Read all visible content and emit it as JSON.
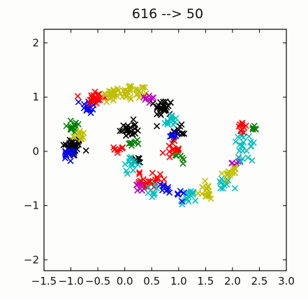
{
  "chart_data": {
    "type": "scatter",
    "title": "616 --> 50",
    "xlabel": "",
    "ylabel": "",
    "xlim": [
      -1.5,
      3.0
    ],
    "ylim": [
      -2.2,
      2.25
    ],
    "x_ticks": [
      -1.5,
      -1.0,
      -0.5,
      0.0,
      0.5,
      1.0,
      1.5,
      2.0,
      2.5,
      3.0
    ],
    "x_tick_labels": [
      "−1.5",
      "−1.0",
      "−0.5",
      "0.0",
      "0.5",
      "1.0",
      "1.5",
      "2.0",
      "2.5",
      "3.0"
    ],
    "y_ticks": [
      -2,
      -1,
      0,
      1,
      2
    ],
    "y_tick_labels": [
      "−2",
      "−1",
      "0",
      "1",
      "2"
    ],
    "marker": "x",
    "grid": false,
    "clusters": [
      {
        "color": "#000000",
        "center": [
          -0.97,
          0.08
        ],
        "n": 40,
        "spread": 0.09
      },
      {
        "color": "#0000ff",
        "center": [
          -1.02,
          -0.08
        ],
        "n": 14,
        "spread": 0.06
      },
      {
        "color": "#008000",
        "center": [
          -0.95,
          0.47
        ],
        "n": 14,
        "spread": 0.07
      },
      {
        "color": "#bfbf00",
        "center": [
          -0.85,
          0.3
        ],
        "n": 10,
        "spread": 0.06
      },
      {
        "color": "#0000ff",
        "center": [
          -0.68,
          0.83
        ],
        "n": 16,
        "spread": 0.07
      },
      {
        "color": "#ff0000",
        "center": [
          -0.55,
          0.98
        ],
        "n": 22,
        "spread": 0.08
      },
      {
        "color": "#bfbf00",
        "center": [
          -0.25,
          1.05
        ],
        "n": 20,
        "spread": 0.08
      },
      {
        "color": "#bfbf00",
        "center": [
          0.05,
          1.1
        ],
        "n": 18,
        "spread": 0.08
      },
      {
        "color": "#bfbf00",
        "center": [
          0.3,
          1.08
        ],
        "n": 12,
        "spread": 0.07
      },
      {
        "color": "#bf00bf",
        "center": [
          0.45,
          0.98
        ],
        "n": 8,
        "spread": 0.06
      },
      {
        "color": "#000000",
        "center": [
          0.72,
          0.8
        ],
        "n": 26,
        "spread": 0.08
      },
      {
        "color": "#00bfbf",
        "center": [
          0.85,
          0.55
        ],
        "n": 12,
        "spread": 0.07
      },
      {
        "color": "#000000",
        "center": [
          1.0,
          0.35
        ],
        "n": 12,
        "spread": 0.06
      },
      {
        "color": "#0000ff",
        "center": [
          0.9,
          0.3
        ],
        "n": 6,
        "spread": 0.05
      },
      {
        "color": "#ff0000",
        "center": [
          0.88,
          0.03
        ],
        "n": 14,
        "spread": 0.07
      },
      {
        "color": "#008000",
        "center": [
          1.05,
          -0.13
        ],
        "n": 6,
        "spread": 0.05
      },
      {
        "color": "#000000",
        "center": [
          0.05,
          0.4
        ],
        "n": 22,
        "spread": 0.08
      },
      {
        "color": "#008000",
        "center": [
          0.2,
          0.15
        ],
        "n": 8,
        "spread": 0.06
      },
      {
        "color": "#ff0000",
        "center": [
          -0.1,
          0.05
        ],
        "n": 8,
        "spread": 0.05
      },
      {
        "color": "#000000",
        "center": [
          0.25,
          -0.15
        ],
        "n": 8,
        "spread": 0.05
      },
      {
        "color": "#00bfbf",
        "center": [
          0.1,
          -0.25
        ],
        "n": 14,
        "spread": 0.07
      },
      {
        "color": "#ff0000",
        "center": [
          0.35,
          -0.55
        ],
        "n": 18,
        "spread": 0.09
      },
      {
        "color": "#ff0000",
        "center": [
          0.62,
          -0.52
        ],
        "n": 12,
        "spread": 0.07
      },
      {
        "color": "#bf00bf",
        "center": [
          0.3,
          -0.65
        ],
        "n": 6,
        "spread": 0.05
      },
      {
        "color": "#00bfbf",
        "center": [
          0.45,
          -0.73
        ],
        "n": 8,
        "spread": 0.06
      },
      {
        "color": "#0000ff",
        "center": [
          0.75,
          -0.7
        ],
        "n": 8,
        "spread": 0.06
      },
      {
        "color": "#00bfbf",
        "center": [
          1.18,
          -0.85
        ],
        "n": 16,
        "spread": 0.07
      },
      {
        "color": "#0000ff",
        "center": [
          1.02,
          -0.78
        ],
        "n": 6,
        "spread": 0.05
      },
      {
        "color": "#bfbf00",
        "center": [
          1.5,
          -0.75
        ],
        "n": 16,
        "spread": 0.08
      },
      {
        "color": "#00bfbf",
        "center": [
          1.85,
          -0.6
        ],
        "n": 12,
        "spread": 0.07
      },
      {
        "color": "#bfbf00",
        "center": [
          1.95,
          -0.38
        ],
        "n": 14,
        "spread": 0.07
      },
      {
        "color": "#bf00bf",
        "center": [
          2.1,
          -0.2
        ],
        "n": 6,
        "spread": 0.05
      },
      {
        "color": "#00bfbf",
        "center": [
          2.22,
          0.0
        ],
        "n": 14,
        "spread": 0.08
      },
      {
        "color": "#00bfbf",
        "center": [
          2.2,
          0.22
        ],
        "n": 8,
        "spread": 0.06
      },
      {
        "color": "#ff0000",
        "center": [
          2.2,
          0.42
        ],
        "n": 10,
        "spread": 0.05
      },
      {
        "color": "#008000",
        "center": [
          2.4,
          0.45
        ],
        "n": 6,
        "spread": 0.04
      }
    ]
  }
}
